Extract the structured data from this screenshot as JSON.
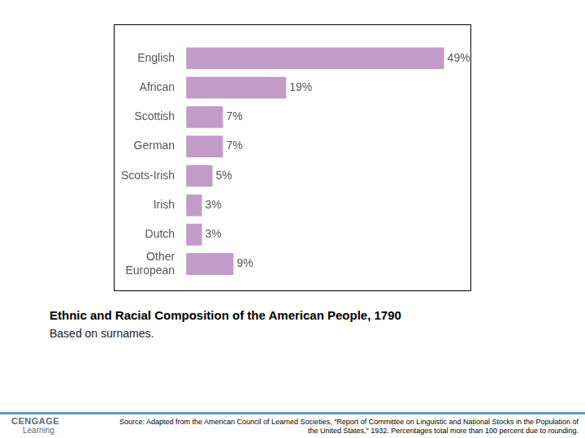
{
  "chart_data": {
    "type": "bar",
    "orientation": "horizontal",
    "title": "Ethnic and Racial Composition of the American People, 1790",
    "subtitle": "Based on surnames.",
    "categories": [
      "English",
      "African",
      "Scottish",
      "German",
      "Scots-Irish",
      "Irish",
      "Dutch",
      "Other European"
    ],
    "values": [
      49,
      19,
      7,
      7,
      5,
      3,
      3,
      9
    ],
    "value_labels": [
      "49%",
      "19%",
      "7%",
      "7%",
      "5%",
      "3%",
      "3%",
      "9%"
    ],
    "color": "#c39bc9",
    "xlim": [
      0,
      54
    ],
    "tick_labels": "y",
    "grid": false,
    "data_labels": true,
    "annotations": [
      "Source: Adapted from the American Council of Learned Societies, \"Report of Committee on Linguistic and National Stocks in the Population of the United States,\" 1932. Percentages total more than 100 percent due to rounding."
    ]
  },
  "footer": {
    "logo": [
      "CENGAGE",
      "Learning"
    ]
  }
}
